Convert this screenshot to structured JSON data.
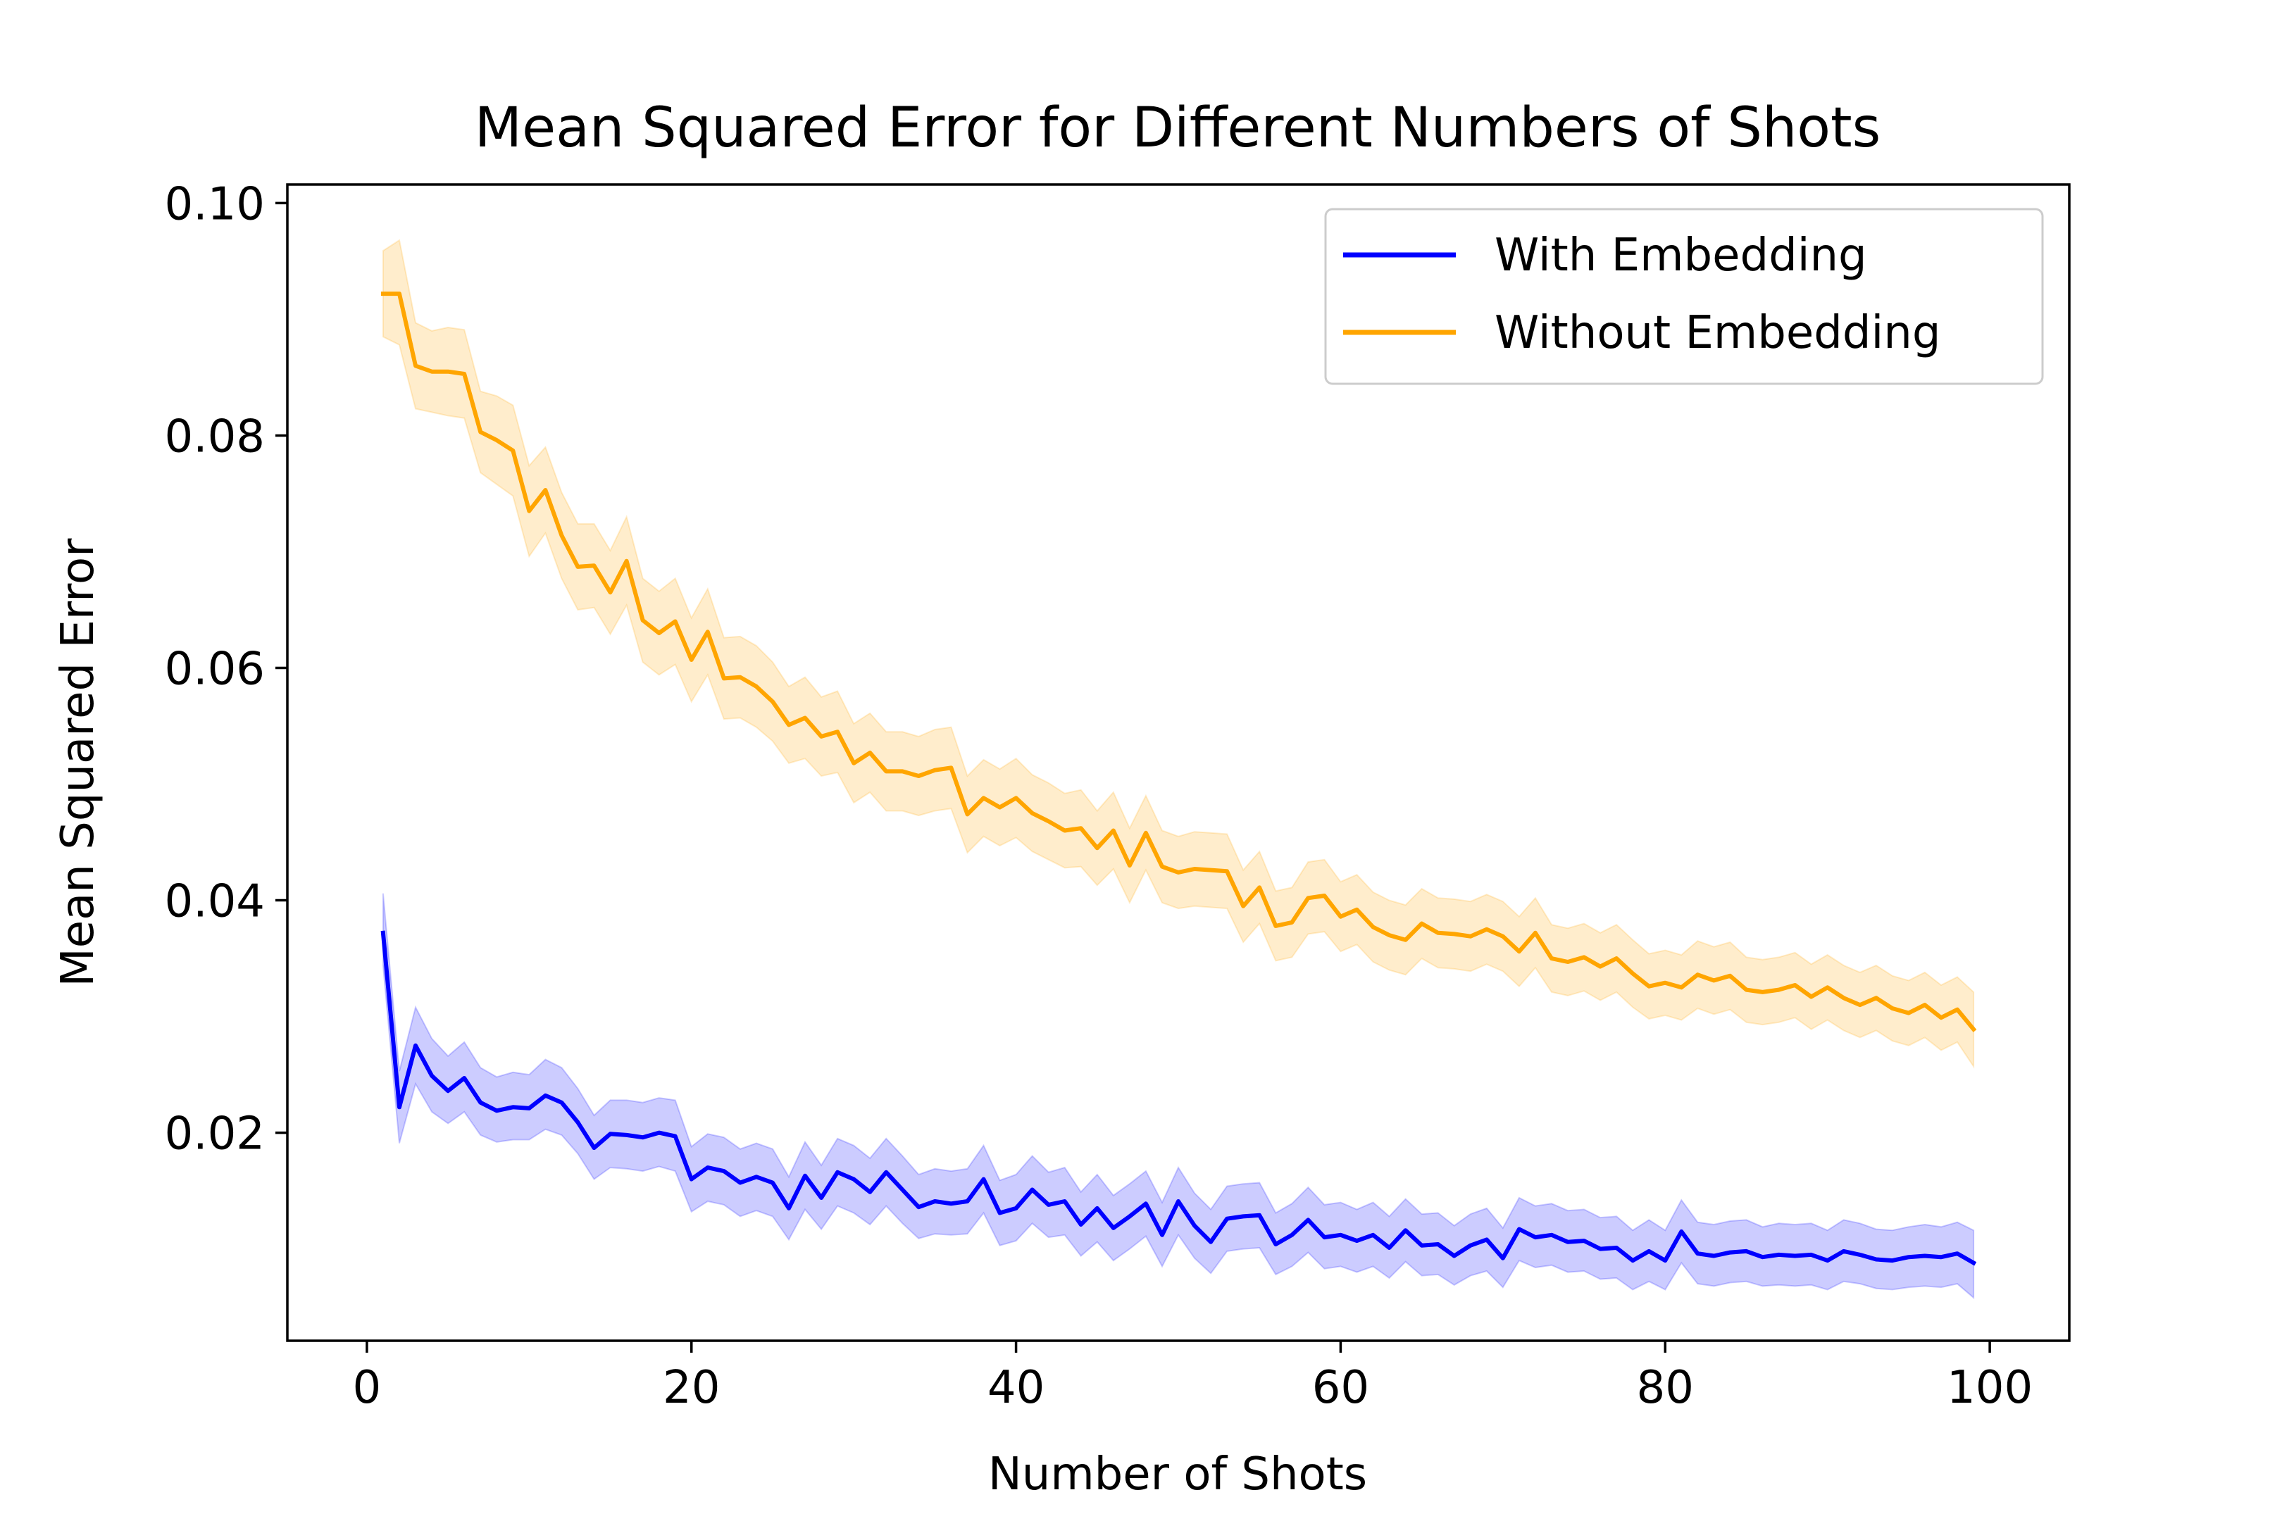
{
  "chart_data": {
    "type": "line",
    "title": "Mean Squared Error for Different Numbers of Shots",
    "xlabel": "Number of Shots",
    "ylabel": "Mean Squared Error",
    "xlim": [
      -4.9,
      104.9
    ],
    "ylim": [
      0.0021,
      0.1016
    ],
    "xticks": [
      0,
      20,
      40,
      60,
      80,
      100
    ],
    "xtick_labels": [
      "0",
      "20",
      "40",
      "60",
      "80",
      "100"
    ],
    "yticks": [
      0.02,
      0.04,
      0.06,
      0.08,
      0.1
    ],
    "ytick_labels": [
      "0.02",
      "0.04",
      "0.06",
      "0.08",
      "0.10"
    ],
    "grid": false,
    "legend_position": "top-right",
    "x_start": 1,
    "series": [
      {
        "name": "With Embedding",
        "color": "#0000ff",
        "band_color": "#0000ff",
        "band_opacity": 0.2,
        "mean": [
          0.0372,
          0.0222,
          0.0275,
          0.0249,
          0.0236,
          0.0247,
          0.0226,
          0.0219,
          0.0222,
          0.0221,
          0.0232,
          0.0226,
          0.0209,
          0.0187,
          0.0199,
          0.0198,
          0.0196,
          0.02,
          0.0197,
          0.016,
          0.017,
          0.0167,
          0.0157,
          0.0162,
          0.0157,
          0.0135,
          0.0163,
          0.0144,
          0.0166,
          0.016,
          0.0149,
          0.0166,
          0.0151,
          0.0136,
          0.0141,
          0.0139,
          0.0141,
          0.016,
          0.0131,
          0.0135,
          0.0151,
          0.0138,
          0.0141,
          0.0121,
          0.0135,
          0.0118,
          0.0128,
          0.0139,
          0.0112,
          0.0141,
          0.012,
          0.0106,
          0.0126,
          0.0128,
          0.0129,
          0.0104,
          0.0112,
          0.0125,
          0.011,
          0.0112,
          0.0107,
          0.0112,
          0.0101,
          0.0116,
          0.0103,
          0.0104,
          0.0094,
          0.0103,
          0.0108,
          0.0092,
          0.0117,
          0.011,
          0.0112,
          0.0106,
          0.0107,
          0.01,
          0.0101,
          0.009,
          0.0098,
          0.009,
          0.0115,
          0.0096,
          0.0094,
          0.0097,
          0.0098,
          0.0093,
          0.0095,
          0.0094,
          0.0095,
          0.009,
          0.0098,
          0.0095,
          0.0091,
          0.009,
          0.0093,
          0.0094,
          0.0093,
          0.0096,
          0.0088
        ],
        "lower": [
          0.0344,
          0.0191,
          0.0242,
          0.0218,
          0.0208,
          0.0218,
          0.0198,
          0.0192,
          0.0194,
          0.0194,
          0.0203,
          0.0198,
          0.0182,
          0.016,
          0.017,
          0.0169,
          0.0167,
          0.0171,
          0.0167,
          0.0132,
          0.0141,
          0.0138,
          0.0128,
          0.0133,
          0.0128,
          0.0108,
          0.0134,
          0.0117,
          0.0137,
          0.0131,
          0.0121,
          0.0137,
          0.0122,
          0.0109,
          0.0113,
          0.0112,
          0.0113,
          0.0131,
          0.0103,
          0.0107,
          0.0122,
          0.011,
          0.0112,
          0.0094,
          0.0106,
          0.009,
          0.01,
          0.0111,
          0.0085,
          0.0112,
          0.0092,
          0.0079,
          0.0098,
          0.01,
          0.0101,
          0.0078,
          0.0085,
          0.0097,
          0.0083,
          0.0085,
          0.008,
          0.0085,
          0.0075,
          0.0089,
          0.0077,
          0.0078,
          0.0069,
          0.0077,
          0.0081,
          0.0067,
          0.009,
          0.0084,
          0.0086,
          0.008,
          0.0081,
          0.0074,
          0.0075,
          0.0065,
          0.0072,
          0.0065,
          0.0088,
          0.007,
          0.0068,
          0.0071,
          0.0072,
          0.0068,
          0.0069,
          0.0068,
          0.0069,
          0.0065,
          0.0072,
          0.007,
          0.0066,
          0.0065,
          0.0067,
          0.0068,
          0.0067,
          0.007,
          0.0058
        ],
        "upper": [
          0.0406,
          0.0253,
          0.0308,
          0.0281,
          0.0266,
          0.0278,
          0.0256,
          0.0248,
          0.0252,
          0.025,
          0.0263,
          0.0256,
          0.0238,
          0.0215,
          0.0228,
          0.0228,
          0.0226,
          0.023,
          0.0228,
          0.0188,
          0.0199,
          0.0196,
          0.0186,
          0.0191,
          0.0186,
          0.0162,
          0.0192,
          0.0172,
          0.0195,
          0.0189,
          0.0178,
          0.0195,
          0.018,
          0.0164,
          0.0169,
          0.0167,
          0.0169,
          0.0189,
          0.0159,
          0.0164,
          0.018,
          0.0166,
          0.017,
          0.0149,
          0.0164,
          0.0146,
          0.0156,
          0.0167,
          0.014,
          0.017,
          0.0148,
          0.0134,
          0.0154,
          0.0156,
          0.0157,
          0.0131,
          0.0139,
          0.0153,
          0.0138,
          0.014,
          0.0134,
          0.014,
          0.0128,
          0.0143,
          0.013,
          0.0131,
          0.012,
          0.013,
          0.0135,
          0.0118,
          0.0144,
          0.0137,
          0.0139,
          0.0133,
          0.0134,
          0.0127,
          0.0128,
          0.0116,
          0.0125,
          0.0116,
          0.0142,
          0.0123,
          0.0121,
          0.0124,
          0.0125,
          0.0119,
          0.0122,
          0.0121,
          0.0122,
          0.0116,
          0.0125,
          0.0122,
          0.0117,
          0.0116,
          0.0119,
          0.0121,
          0.0119,
          0.0123,
          0.0116
        ]
      },
      {
        "name": "Without Embedding",
        "color": "#ffa500",
        "band_color": "#ffa500",
        "band_opacity": 0.2,
        "mean": [
          0.0922,
          0.0922,
          0.086,
          0.0855,
          0.0855,
          0.0853,
          0.0803,
          0.0796,
          0.0787,
          0.0735,
          0.0753,
          0.0714,
          0.0687,
          0.0688,
          0.0665,
          0.0692,
          0.0641,
          0.063,
          0.064,
          0.0607,
          0.0631,
          0.0591,
          0.0592,
          0.0584,
          0.0571,
          0.0551,
          0.0557,
          0.0541,
          0.0545,
          0.0518,
          0.0527,
          0.0511,
          0.0511,
          0.0507,
          0.0512,
          0.0514,
          0.0474,
          0.0488,
          0.048,
          0.0488,
          0.0475,
          0.0468,
          0.046,
          0.0462,
          0.0445,
          0.046,
          0.043,
          0.0458,
          0.0429,
          0.0424,
          0.0427,
          0.0426,
          0.0425,
          0.0395,
          0.0411,
          0.0378,
          0.0381,
          0.0402,
          0.0404,
          0.0386,
          0.0392,
          0.0377,
          0.037,
          0.0366,
          0.038,
          0.0372,
          0.0371,
          0.0369,
          0.0375,
          0.0369,
          0.0356,
          0.0372,
          0.035,
          0.0347,
          0.0351,
          0.0343,
          0.035,
          0.0337,
          0.0326,
          0.0329,
          0.0325,
          0.0336,
          0.0331,
          0.0335,
          0.0323,
          0.0321,
          0.0323,
          0.0327,
          0.0317,
          0.0325,
          0.0316,
          0.031,
          0.0316,
          0.0307,
          0.0303,
          0.031,
          0.0299,
          0.0306,
          0.0289
        ],
        "lower": [
          0.0885,
          0.0878,
          0.0823,
          0.082,
          0.0817,
          0.0815,
          0.0768,
          0.0758,
          0.0748,
          0.0696,
          0.0716,
          0.0677,
          0.065,
          0.0652,
          0.0629,
          0.0654,
          0.0605,
          0.0594,
          0.0603,
          0.0571,
          0.0594,
          0.0556,
          0.0557,
          0.0549,
          0.0537,
          0.0518,
          0.0522,
          0.0507,
          0.051,
          0.0484,
          0.0493,
          0.0477,
          0.0477,
          0.0473,
          0.0477,
          0.0479,
          0.0441,
          0.0455,
          0.0447,
          0.0454,
          0.0442,
          0.0435,
          0.0428,
          0.0429,
          0.0413,
          0.0427,
          0.0398,
          0.0426,
          0.0398,
          0.0393,
          0.0395,
          0.0394,
          0.0393,
          0.0364,
          0.038,
          0.0348,
          0.0351,
          0.0371,
          0.0373,
          0.0356,
          0.0362,
          0.0347,
          0.034,
          0.0336,
          0.035,
          0.0342,
          0.0341,
          0.0339,
          0.0345,
          0.0339,
          0.0326,
          0.0342,
          0.0321,
          0.0318,
          0.0322,
          0.0314,
          0.0321,
          0.0308,
          0.0298,
          0.0301,
          0.0297,
          0.0307,
          0.0302,
          0.0306,
          0.0295,
          0.0293,
          0.0295,
          0.0299,
          0.0289,
          0.0297,
          0.0288,
          0.0282,
          0.0288,
          0.0279,
          0.0275,
          0.0282,
          0.0271,
          0.0278,
          0.0257
        ],
        "upper": [
          0.0959,
          0.0968,
          0.0897,
          0.089,
          0.0893,
          0.0891,
          0.0838,
          0.0834,
          0.0826,
          0.0774,
          0.079,
          0.0751,
          0.0724,
          0.0724,
          0.0701,
          0.073,
          0.0677,
          0.0666,
          0.0677,
          0.0643,
          0.0668,
          0.0626,
          0.0627,
          0.0619,
          0.0605,
          0.0584,
          0.0592,
          0.0575,
          0.058,
          0.0552,
          0.0561,
          0.0545,
          0.0545,
          0.0541,
          0.0547,
          0.0549,
          0.0507,
          0.0521,
          0.0513,
          0.0522,
          0.0508,
          0.0501,
          0.0492,
          0.0495,
          0.0477,
          0.0493,
          0.0462,
          0.049,
          0.046,
          0.0455,
          0.0459,
          0.0458,
          0.0457,
          0.0426,
          0.0442,
          0.0408,
          0.0411,
          0.0433,
          0.0435,
          0.0416,
          0.0422,
          0.0407,
          0.04,
          0.0396,
          0.041,
          0.0402,
          0.0401,
          0.0399,
          0.0405,
          0.0399,
          0.0386,
          0.0402,
          0.0379,
          0.0376,
          0.038,
          0.0372,
          0.0379,
          0.0366,
          0.0354,
          0.0357,
          0.0353,
          0.0365,
          0.036,
          0.0364,
          0.0351,
          0.0349,
          0.0351,
          0.0355,
          0.0345,
          0.0353,
          0.0344,
          0.0338,
          0.0344,
          0.0335,
          0.0331,
          0.0338,
          0.0327,
          0.0334,
          0.0321
        ]
      }
    ]
  }
}
